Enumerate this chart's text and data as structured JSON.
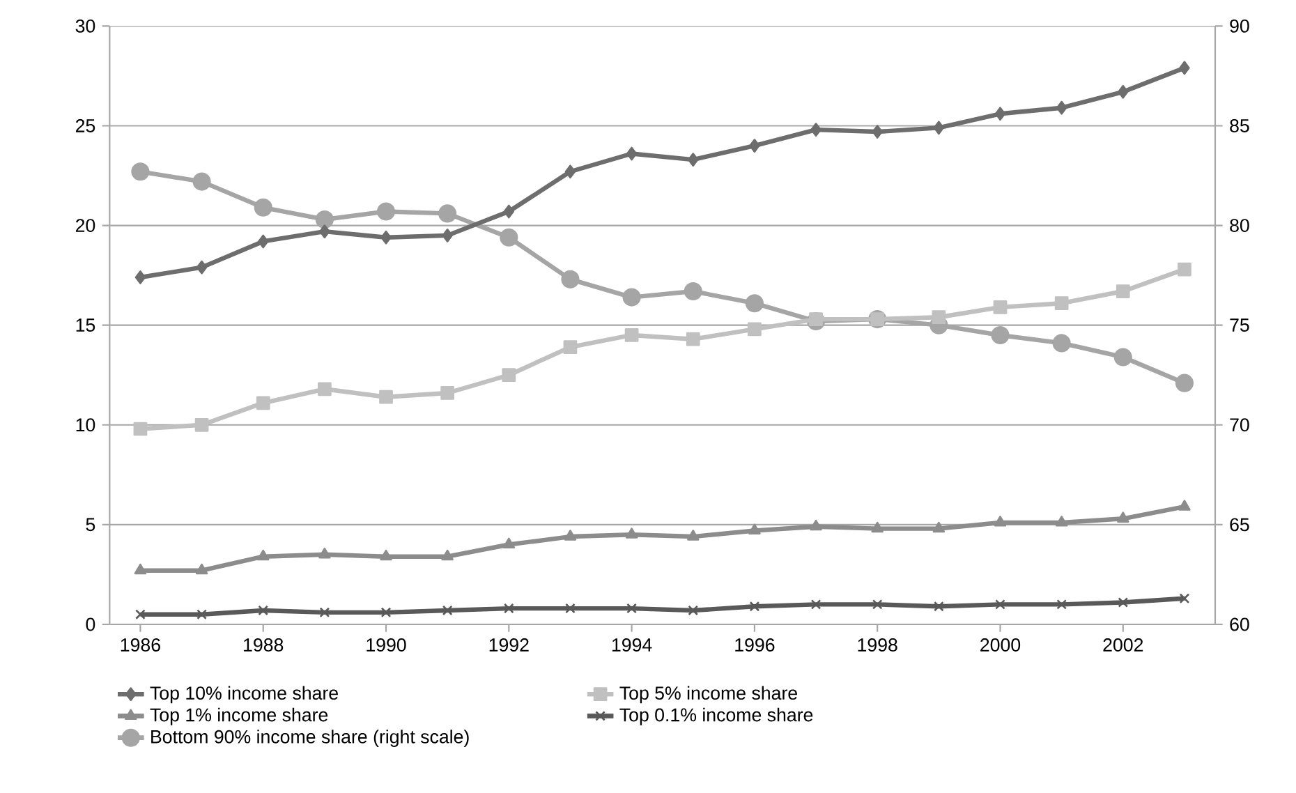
{
  "chart_data": {
    "type": "line",
    "x": [
      1986,
      1987,
      1988,
      1989,
      1990,
      1991,
      1992,
      1993,
      1994,
      1995,
      1996,
      1997,
      1998,
      1999,
      2000,
      2001,
      2002,
      2003
    ],
    "series": [
      {
        "name": "Top 10% income share",
        "color": "#6d6d6d",
        "marker": "diamond",
        "values": [
          17.4,
          17.9,
          19.2,
          19.7,
          19.4,
          19.5,
          20.7,
          22.7,
          23.6,
          23.3,
          24.0,
          24.8,
          24.7,
          24.9,
          25.6,
          25.9,
          26.7,
          27.9
        ]
      },
      {
        "name": "Top 5% income share",
        "color": "#c0c0c0",
        "marker": "square",
        "values": [
          9.8,
          10.0,
          11.1,
          11.8,
          11.4,
          11.6,
          12.5,
          13.9,
          14.5,
          14.3,
          14.8,
          15.3,
          15.3,
          15.4,
          15.9,
          16.1,
          16.7,
          17.8
        ]
      },
      {
        "name": "Top 1% income share",
        "color": "#8c8c8c",
        "marker": "triangle",
        "values": [
          2.7,
          2.7,
          3.4,
          3.5,
          3.4,
          3.4,
          4.0,
          4.4,
          4.5,
          4.4,
          4.7,
          4.9,
          4.8,
          4.8,
          5.1,
          5.1,
          5.3,
          5.9
        ]
      },
      {
        "name": "Top 0.1% income share",
        "color": "#595959",
        "marker": "cross",
        "values": [
          0.5,
          0.5,
          0.7,
          0.6,
          0.6,
          0.7,
          0.8,
          0.8,
          0.8,
          0.7,
          0.9,
          1.0,
          1.0,
          0.9,
          1.0,
          1.0,
          1.1,
          1.3
        ]
      },
      {
        "name": "Bottom 90% income share (right scale)",
        "color": "#a5a5a5",
        "marker": "circle",
        "axis": "y2",
        "values": [
          82.7,
          82.2,
          80.9,
          80.3,
          80.7,
          80.6,
          79.4,
          77.3,
          76.4,
          76.7,
          76.1,
          75.2,
          75.3,
          75.0,
          74.5,
          74.1,
          73.4,
          72.1
        ]
      }
    ],
    "xlim": [
      1985.5,
      2003.5
    ],
    "xticks": [
      1986,
      1988,
      1990,
      1992,
      1994,
      1996,
      1998,
      2000,
      2002
    ],
    "ylim": [
      0,
      30
    ],
    "yticks": [
      0,
      5,
      10,
      15,
      20,
      25,
      30
    ],
    "y2lim": [
      60,
      90
    ],
    "y2ticks": [
      60,
      65,
      70,
      75,
      80,
      85,
      90
    ],
    "grid": "y",
    "legend": "bottom",
    "line_style": "solid"
  }
}
